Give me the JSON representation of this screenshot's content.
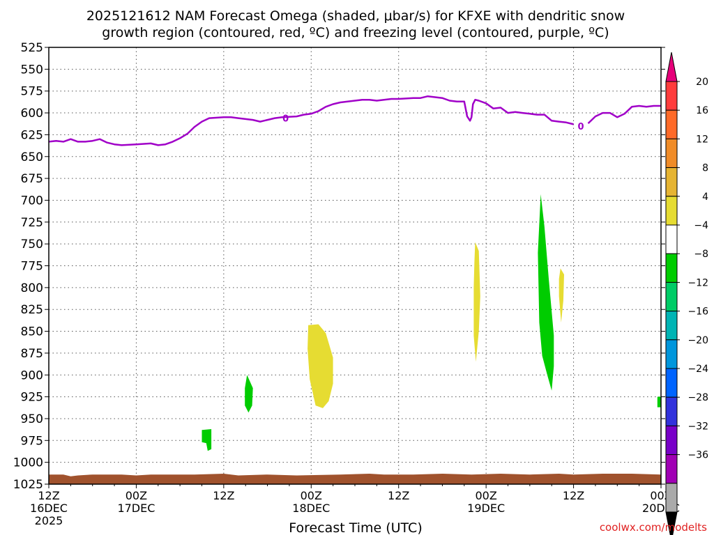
{
  "chart_data": {
    "type": "heatmap",
    "title_line1": "2025121612 NAM Forecast Omega (shaded, μbar/s) for KFXE with dendritic snow",
    "title_line2": "growth region (contoured, red, ºC) and freezing level (contoured, purple, ºC)",
    "xlabel": "Forecast Time (UTC)",
    "ylabel": "",
    "credit": "coolwx.com/modelts",
    "xlim": [
      0,
      84
    ],
    "ylim": [
      1025,
      525
    ],
    "grid": true,
    "y_ticks": [
      525,
      550,
      575,
      600,
      625,
      650,
      675,
      700,
      725,
      750,
      775,
      800,
      825,
      850,
      875,
      900,
      925,
      950,
      975,
      1000,
      1025
    ],
    "x_ticks": [
      {
        "hour": 0,
        "top": "12Z",
        "mid": "16DEC",
        "bot": "2025"
      },
      {
        "hour": 12,
        "top": "00Z",
        "mid": "17DEC",
        "bot": ""
      },
      {
        "hour": 24,
        "top": "12Z",
        "mid": "",
        "bot": ""
      },
      {
        "hour": 36,
        "top": "00Z",
        "mid": "18DEC",
        "bot": ""
      },
      {
        "hour": 48,
        "top": "12Z",
        "mid": "",
        "bot": ""
      },
      {
        "hour": 60,
        "top": "00Z",
        "mid": "19DEC",
        "bot": ""
      },
      {
        "hour": 72,
        "top": "12Z",
        "mid": "",
        "bot": ""
      },
      {
        "hour": 84,
        "top": "00Z",
        "mid": "20DEC",
        "bot": ""
      }
    ],
    "freezing_level": {
      "color": "#a000c8",
      "label": "0",
      "label_points": [
        [
          32.5,
          606
        ],
        [
          73.0,
          615
        ]
      ],
      "points": [
        [
          0,
          633
        ],
        [
          1,
          632
        ],
        [
          2,
          633
        ],
        [
          3,
          630
        ],
        [
          4,
          633
        ],
        [
          5,
          633
        ],
        [
          6,
          632
        ],
        [
          7,
          630
        ],
        [
          8,
          634
        ],
        [
          9,
          636
        ],
        [
          10,
          637
        ],
        [
          12,
          636
        ],
        [
          14,
          635
        ],
        [
          15,
          637
        ],
        [
          16,
          636
        ],
        [
          17,
          633
        ],
        [
          18,
          629
        ],
        [
          19,
          624
        ],
        [
          20,
          616
        ],
        [
          21,
          610
        ],
        [
          22,
          606
        ],
        [
          24,
          605
        ],
        [
          25,
          605
        ],
        [
          26,
          606
        ],
        [
          28,
          608
        ],
        [
          29,
          610
        ],
        [
          30,
          608
        ],
        [
          31,
          606
        ],
        [
          32,
          605
        ],
        [
          34,
          604
        ],
        [
          35,
          602
        ],
        [
          36,
          601
        ],
        [
          37,
          598
        ],
        [
          38,
          593
        ],
        [
          39,
          590
        ],
        [
          40,
          588
        ],
        [
          41,
          587
        ],
        [
          42,
          586
        ],
        [
          43,
          585
        ],
        [
          44,
          585
        ],
        [
          45,
          586
        ],
        [
          46,
          585
        ],
        [
          47,
          584
        ],
        [
          48,
          584
        ],
        [
          50,
          583
        ],
        [
          51,
          583
        ],
        [
          52,
          581
        ],
        [
          53,
          582
        ],
        [
          54,
          583
        ],
        [
          55,
          586
        ],
        [
          56,
          587
        ],
        [
          57,
          587
        ],
        [
          57.4,
          604
        ],
        [
          57.8,
          609
        ],
        [
          58.0,
          605
        ],
        [
          58.2,
          590
        ],
        [
          58.5,
          585
        ],
        [
          59,
          586
        ],
        [
          60,
          589
        ],
        [
          61,
          595
        ],
        [
          62,
          594
        ],
        [
          63,
          600
        ],
        [
          64,
          599
        ],
        [
          65,
          600
        ],
        [
          66,
          601
        ],
        [
          67,
          602
        ],
        [
          68,
          602
        ],
        [
          69,
          609
        ],
        [
          70,
          610
        ],
        [
          71,
          611
        ],
        [
          72,
          613
        ],
        [
          73,
          615
        ],
        [
          74,
          612
        ],
        [
          75,
          604
        ],
        [
          76,
          600
        ],
        [
          77,
          600
        ],
        [
          78,
          605
        ],
        [
          79,
          601
        ],
        [
          80,
          593
        ],
        [
          81,
          592
        ],
        [
          82,
          593
        ],
        [
          83,
          592
        ],
        [
          84,
          592
        ]
      ]
    },
    "omega_regions": [
      {
        "color": "#e6dc32",
        "points": [
          [
            35.6,
            843
          ],
          [
            37.0,
            842
          ],
          [
            38.0,
            852
          ],
          [
            39.0,
            880
          ],
          [
            39.0,
            910
          ],
          [
            38.4,
            930
          ],
          [
            37.6,
            938
          ],
          [
            36.6,
            935
          ],
          [
            35.8,
            905
          ],
          [
            35.5,
            870
          ]
        ]
      },
      {
        "color": "#e6dc32",
        "points": [
          [
            58.5,
            748
          ],
          [
            59.0,
            758
          ],
          [
            59.2,
            810
          ],
          [
            59.0,
            850
          ],
          [
            58.6,
            885
          ],
          [
            58.3,
            855
          ],
          [
            58.3,
            800
          ],
          [
            58.4,
            770
          ]
        ]
      },
      {
        "color": "#e6dc32",
        "points": [
          [
            70.2,
            778
          ],
          [
            70.7,
            785
          ],
          [
            70.6,
            815
          ],
          [
            70.3,
            840
          ],
          [
            70.0,
            810
          ],
          [
            70.0,
            790
          ]
        ]
      },
      {
        "color": "#00cc00",
        "points": [
          [
            67.5,
            693
          ],
          [
            68.0,
            730
          ],
          [
            68.6,
            790
          ],
          [
            69.3,
            855
          ],
          [
            69.3,
            890
          ],
          [
            69.0,
            918
          ],
          [
            68.4,
            900
          ],
          [
            67.7,
            878
          ],
          [
            67.3,
            840
          ],
          [
            67.1,
            760
          ]
        ]
      },
      {
        "color": "#00cc00",
        "points": [
          [
            27.2,
            900
          ],
          [
            28.0,
            915
          ],
          [
            27.9,
            935
          ],
          [
            27.4,
            943
          ],
          [
            26.9,
            935
          ],
          [
            26.9,
            915
          ]
        ]
      },
      {
        "color": "#00cc00",
        "points": [
          [
            21.0,
            963
          ],
          [
            22.3,
            962
          ],
          [
            22.3,
            985
          ],
          [
            21.8,
            987
          ],
          [
            21.6,
            978
          ],
          [
            21.0,
            977
          ]
        ]
      },
      {
        "color": "#00cc00",
        "points": [
          [
            83.5,
            925
          ],
          [
            84.0,
            925
          ],
          [
            84.0,
            937
          ],
          [
            83.5,
            937
          ]
        ]
      }
    ],
    "ground": {
      "color": "#a0522d",
      "surface": [
        [
          0,
          1014
        ],
        [
          2,
          1014
        ],
        [
          3,
          1016
        ],
        [
          4,
          1015
        ],
        [
          6,
          1014
        ],
        [
          10,
          1014
        ],
        [
          12,
          1015
        ],
        [
          14,
          1014
        ],
        [
          20,
          1014
        ],
        [
          24,
          1013
        ],
        [
          26,
          1015
        ],
        [
          30,
          1014
        ],
        [
          34,
          1015
        ],
        [
          40,
          1014
        ],
        [
          44,
          1013
        ],
        [
          46,
          1014
        ],
        [
          50,
          1014
        ],
        [
          54,
          1013
        ],
        [
          58,
          1014
        ],
        [
          62,
          1013
        ],
        [
          66,
          1014
        ],
        [
          70,
          1013
        ],
        [
          72,
          1014
        ],
        [
          76,
          1013
        ],
        [
          80,
          1013
        ],
        [
          84,
          1014
        ]
      ]
    },
    "colorbar": {
      "top_color": "#e6007a",
      "bottom_color": "#000000",
      "segments": [
        {
          "color": "#ff3c3c"
        },
        {
          "color": "#ff6a28"
        },
        {
          "color": "#f08c28"
        },
        {
          "color": "#e6b432"
        },
        {
          "color": "#e6dc32"
        },
        {
          "color": "#ffffff"
        },
        {
          "color": "#00cc00"
        },
        {
          "color": "#00cc66"
        },
        {
          "color": "#00b4b4"
        },
        {
          "color": "#0096dc"
        },
        {
          "color": "#0064ff"
        },
        {
          "color": "#3232dc"
        },
        {
          "color": "#7800c8"
        },
        {
          "color": "#a000b4"
        },
        {
          "color": "#aaaaaa"
        }
      ],
      "labels": [
        "20",
        "16",
        "12",
        "8",
        "4",
        "−4",
        "−8",
        "−12",
        "−16",
        "−20",
        "−24",
        "−28",
        "−32",
        "−36"
      ]
    }
  }
}
